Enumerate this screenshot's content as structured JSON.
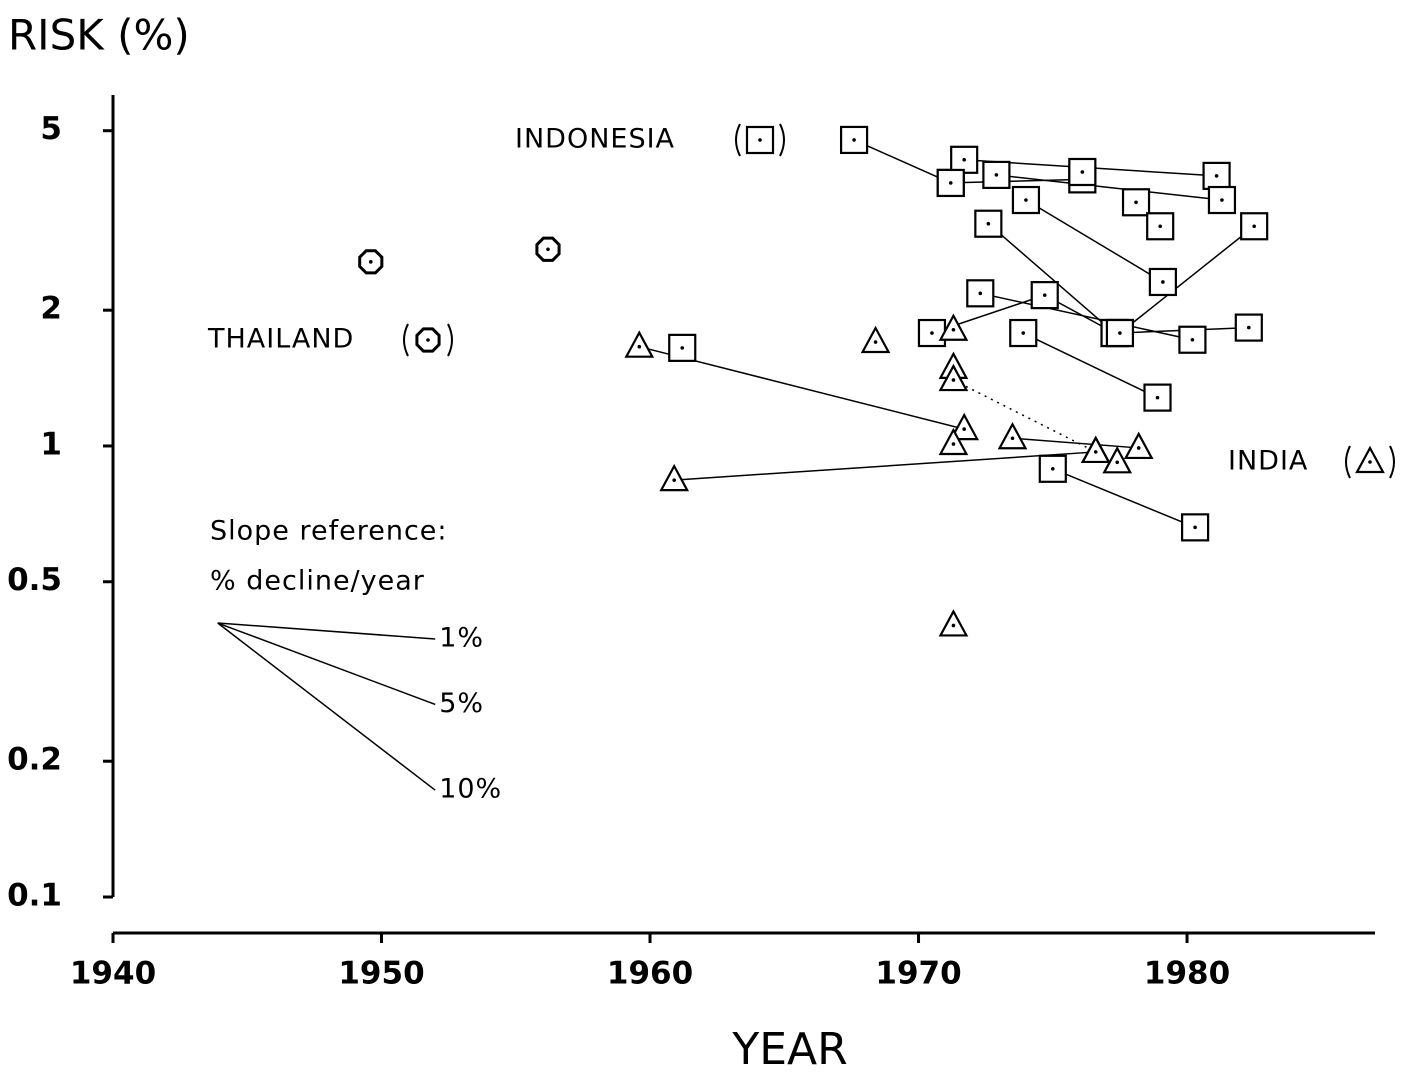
{
  "chart_data": {
    "type": "scatter",
    "y_label": "RISK (%)",
    "x_label": "YEAR",
    "log_y": true,
    "xlim": [
      1940,
      1987
    ],
    "ylim": [
      0.1,
      6
    ],
    "xticks": [
      1940,
      1950,
      1960,
      1970,
      1980
    ],
    "yticks": [
      0.1,
      0.2,
      0.5,
      1,
      2,
      5
    ],
    "series": [
      {
        "name": "THAILAND",
        "marker": "circle",
        "color": "#000",
        "pieces": [
          {
            "x": [
              1949.6
            ],
            "y": [
              2.56
            ]
          },
          {
            "x": [
              1956.2
            ],
            "y": [
              2.73
            ]
          }
        ]
      },
      {
        "name": "INDONESIA",
        "marker": "square",
        "color": "#000",
        "pieces": [
          {
            "x": [
              1967.6,
              1971.2
            ],
            "y": [
              4.77,
              3.83
            ]
          },
          {
            "x": [
              1971.7,
              1981.1
            ],
            "y": [
              4.31,
              3.97
            ]
          },
          {
            "x": [
              1971.2,
              1976.1
            ],
            "y": [
              3.83,
              3.9
            ]
          },
          {
            "x": [
              1972.9,
              1981.3
            ],
            "y": [
              3.99,
              3.51
            ]
          },
          {
            "x": [
              1976.1
            ],
            "y": [
              4.05
            ]
          },
          {
            "x": [
              1974.0,
              1979.1
            ],
            "y": [
              3.51,
              2.31
            ]
          },
          {
            "x": [
              1978.1
            ],
            "y": [
              3.47
            ]
          },
          {
            "x": [
              1979.0
            ],
            "y": [
              3.07
            ]
          },
          {
            "x": [
              1972.6,
              1977.3
            ],
            "y": [
              3.11,
              1.78
            ]
          },
          {
            "x": [
              1982.5,
              1977.5
            ],
            "y": [
              3.07,
              1.78
            ]
          },
          {
            "x": [
              1972.3,
              1980.2
            ],
            "y": [
              2.18,
              1.72
            ]
          },
          {
            "x": [
              1970.5,
              1974.7,
              1977.3
            ],
            "y": [
              1.78,
              2.16,
              1.78
            ]
          },
          {
            "x": [
              1982.3,
              1977.5
            ],
            "y": [
              1.83,
              1.78
            ]
          },
          {
            "x": [
              1973.9,
              1978.9
            ],
            "y": [
              1.78,
              1.28
            ]
          },
          {
            "x": [
              1961.2
            ],
            "y": [
              1.65
            ]
          },
          {
            "x": [
              1975.0,
              1980.3
            ],
            "y": [
              0.89,
              0.66
            ]
          }
        ]
      },
      {
        "name": "INDIA",
        "marker": "triangle",
        "color": "#000",
        "pieces": [
          {
            "x": [
              1959.6,
              1971.7
            ],
            "y": [
              1.66,
              1.09
            ]
          },
          {
            "x": [
              1968.4
            ],
            "y": [
              1.7
            ]
          },
          {
            "x": [
              1971.3
            ],
            "y": [
              1.81
            ]
          },
          {
            "x": [
              1971.3
            ],
            "y": [
              1.49
            ]
          },
          {
            "x": [
              1971.3,
              1976.6
            ],
            "y": [
              1.4,
              0.97
            ],
            "dotted": true
          },
          {
            "x": [
              1971.3
            ],
            "y": [
              1.01
            ]
          },
          {
            "x": [
              1973.5,
              1978.2
            ],
            "y": [
              1.04,
              0.99
            ]
          },
          {
            "x": [
              1960.9,
              1976.6
            ],
            "y": [
              0.84,
              0.97
            ]
          },
          {
            "x": [
              1977.4
            ],
            "y": [
              0.92
            ]
          },
          {
            "x": [
              1971.3
            ],
            "y": [
              0.4
            ]
          }
        ]
      }
    ],
    "slope_reference": {
      "title": "Slope reference:",
      "subtitle": "% decline/year",
      "x": [
        1943.9,
        1952
      ],
      "y": 0.405,
      "slopes": [
        {
          "value": 1,
          "label": "1%"
        },
        {
          "value": 5,
          "label": "5%"
        },
        {
          "value": 10,
          "label": "10%"
        }
      ]
    }
  }
}
